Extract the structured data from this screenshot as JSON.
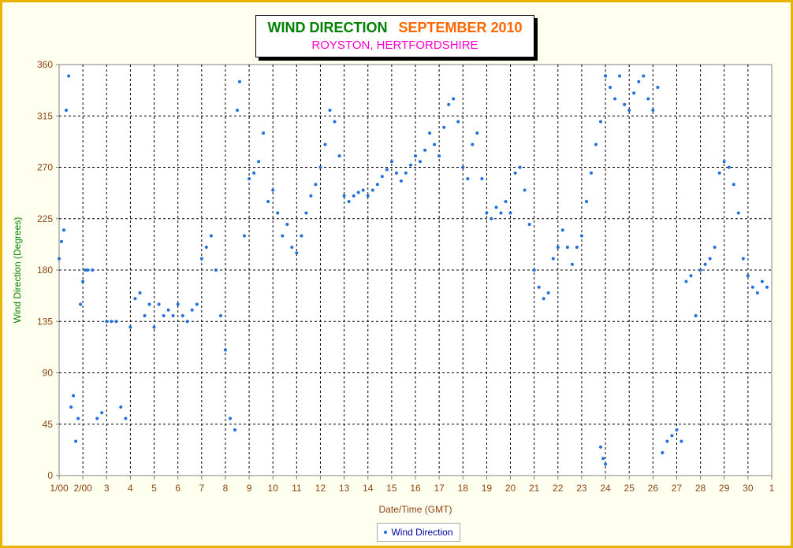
{
  "title": "WIND DIRECTION",
  "title_month": "SEPTEMBER 2010",
  "subtitle": "ROYSTON, HERTFORDSHIRE",
  "colors": {
    "frame": "#e8b400",
    "background": "#fffff0",
    "title": "#008000",
    "title_month": "#ff6600",
    "subtitle": "#ff00cc",
    "axis_text": "#8b4513",
    "ylabel": "#008000",
    "series": "#1f6fdc"
  },
  "chart_data": {
    "type": "scatter",
    "title": "WIND DIRECTION   SEPTEMBER 2010",
    "subtitle": "ROYSTON, HERTFORDSHIRE",
    "xlabel": "Date/Time (GMT)",
    "ylabel": "Wind Direction (Degrees)",
    "ylim": [
      0,
      360
    ],
    "yticks": [
      0,
      45,
      90,
      135,
      180,
      225,
      270,
      315,
      360
    ],
    "xlim": [
      1,
      31
    ],
    "xtick_labels": [
      "1/00",
      "2/00",
      "3",
      "4",
      "5",
      "6",
      "7",
      "8",
      "9",
      "10",
      "11",
      "12",
      "13",
      "14",
      "15",
      "16",
      "17",
      "18",
      "19",
      "20",
      "21",
      "22",
      "23",
      "24",
      "25",
      "26",
      "27",
      "28",
      "29",
      "30",
      "1"
    ],
    "grid": true,
    "legend": "bottom-center",
    "series": [
      {
        "name": "Wind Direction",
        "color": "#1f6fdc",
        "points": [
          [
            1.0,
            190
          ],
          [
            1.1,
            205
          ],
          [
            1.2,
            215
          ],
          [
            1.3,
            320
          ],
          [
            1.4,
            350
          ],
          [
            1.5,
            60
          ],
          [
            1.6,
            70
          ],
          [
            1.7,
            30
          ],
          [
            1.8,
            50
          ],
          [
            1.9,
            150
          ],
          [
            2.0,
            170
          ],
          [
            2.1,
            180
          ],
          [
            2.2,
            180
          ],
          [
            2.4,
            180
          ],
          [
            2.6,
            50
          ],
          [
            2.8,
            55
          ],
          [
            3.0,
            135
          ],
          [
            3.2,
            135
          ],
          [
            3.4,
            135
          ],
          [
            3.6,
            60
          ],
          [
            3.8,
            50
          ],
          [
            4.0,
            130
          ],
          [
            4.2,
            155
          ],
          [
            4.4,
            160
          ],
          [
            4.6,
            140
          ],
          [
            4.8,
            150
          ],
          [
            5.0,
            130
          ],
          [
            5.2,
            150
          ],
          [
            5.4,
            140
          ],
          [
            5.6,
            145
          ],
          [
            5.8,
            140
          ],
          [
            6.0,
            150
          ],
          [
            6.2,
            140
          ],
          [
            6.4,
            135
          ],
          [
            6.6,
            145
          ],
          [
            6.8,
            150
          ],
          [
            7.0,
            190
          ],
          [
            7.2,
            200
          ],
          [
            7.4,
            210
          ],
          [
            7.6,
            180
          ],
          [
            7.8,
            140
          ],
          [
            8.0,
            110
          ],
          [
            8.2,
            50
          ],
          [
            8.4,
            40
          ],
          [
            8.5,
            320
          ],
          [
            8.6,
            345
          ],
          [
            8.8,
            210
          ],
          [
            9.0,
            260
          ],
          [
            9.2,
            265
          ],
          [
            9.4,
            275
          ],
          [
            9.6,
            300
          ],
          [
            9.8,
            240
          ],
          [
            10.0,
            250
          ],
          [
            10.2,
            230
          ],
          [
            10.4,
            210
          ],
          [
            10.6,
            220
          ],
          [
            10.8,
            200
          ],
          [
            11.0,
            195
          ],
          [
            11.2,
            210
          ],
          [
            11.4,
            230
          ],
          [
            11.6,
            245
          ],
          [
            11.8,
            255
          ],
          [
            12.0,
            270
          ],
          [
            12.2,
            290
          ],
          [
            12.4,
            320
          ],
          [
            12.6,
            310
          ],
          [
            12.8,
            280
          ],
          [
            13.0,
            245
          ],
          [
            13.2,
            240
          ],
          [
            13.4,
            245
          ],
          [
            13.6,
            248
          ],
          [
            13.8,
            250
          ],
          [
            14.0,
            245
          ],
          [
            14.2,
            250
          ],
          [
            14.4,
            255
          ],
          [
            14.6,
            262
          ],
          [
            14.8,
            268
          ],
          [
            15.0,
            275
          ],
          [
            15.2,
            265
          ],
          [
            15.4,
            258
          ],
          [
            15.6,
            265
          ],
          [
            15.8,
            272
          ],
          [
            16.0,
            280
          ],
          [
            16.2,
            275
          ],
          [
            16.4,
            285
          ],
          [
            16.6,
            300
          ],
          [
            16.8,
            290
          ],
          [
            17.0,
            280
          ],
          [
            17.2,
            305
          ],
          [
            17.4,
            325
          ],
          [
            17.6,
            330
          ],
          [
            17.8,
            310
          ],
          [
            18.0,
            270
          ],
          [
            18.2,
            260
          ],
          [
            18.4,
            290
          ],
          [
            18.6,
            300
          ],
          [
            18.8,
            260
          ],
          [
            19.0,
            230
          ],
          [
            19.2,
            225
          ],
          [
            19.4,
            235
          ],
          [
            19.6,
            230
          ],
          [
            19.8,
            240
          ],
          [
            20.0,
            230
          ],
          [
            20.2,
            265
          ],
          [
            20.4,
            270
          ],
          [
            20.6,
            250
          ],
          [
            20.8,
            220
          ],
          [
            21.0,
            180
          ],
          [
            21.2,
            165
          ],
          [
            21.4,
            155
          ],
          [
            21.6,
            160
          ],
          [
            21.8,
            190
          ],
          [
            22.0,
            200
          ],
          [
            22.2,
            215
          ],
          [
            22.4,
            200
          ],
          [
            22.6,
            185
          ],
          [
            22.8,
            200
          ],
          [
            23.0,
            210
          ],
          [
            23.2,
            240
          ],
          [
            23.4,
            265
          ],
          [
            23.6,
            290
          ],
          [
            23.8,
            310
          ],
          [
            24.0,
            350
          ],
          [
            24.2,
            340
          ],
          [
            24.4,
            330
          ],
          [
            24.6,
            350
          ],
          [
            24.8,
            325
          ],
          [
            25.0,
            320
          ],
          [
            25.2,
            335
          ],
          [
            25.4,
            345
          ],
          [
            25.6,
            350
          ],
          [
            25.8,
            330
          ],
          [
            26.0,
            320
          ],
          [
            26.2,
            340
          ],
          [
            26.4,
            20
          ],
          [
            26.6,
            30
          ],
          [
            26.8,
            35
          ],
          [
            27.0,
            40
          ],
          [
            27.2,
            30
          ],
          [
            27.4,
            170
          ],
          [
            27.6,
            175
          ],
          [
            27.8,
            140
          ],
          [
            28.0,
            180
          ],
          [
            28.2,
            185
          ],
          [
            28.4,
            190
          ],
          [
            28.6,
            200
          ],
          [
            28.8,
            265
          ],
          [
            29.0,
            275
          ],
          [
            29.2,
            270
          ],
          [
            29.4,
            255
          ],
          [
            29.6,
            230
          ],
          [
            29.8,
            190
          ],
          [
            30.0,
            175
          ],
          [
            30.2,
            165
          ],
          [
            30.4,
            160
          ],
          [
            30.6,
            170
          ],
          [
            23.9,
            15
          ],
          [
            24.0,
            10
          ],
          [
            23.8,
            25
          ],
          [
            30.8,
            165
          ]
        ]
      }
    ]
  }
}
